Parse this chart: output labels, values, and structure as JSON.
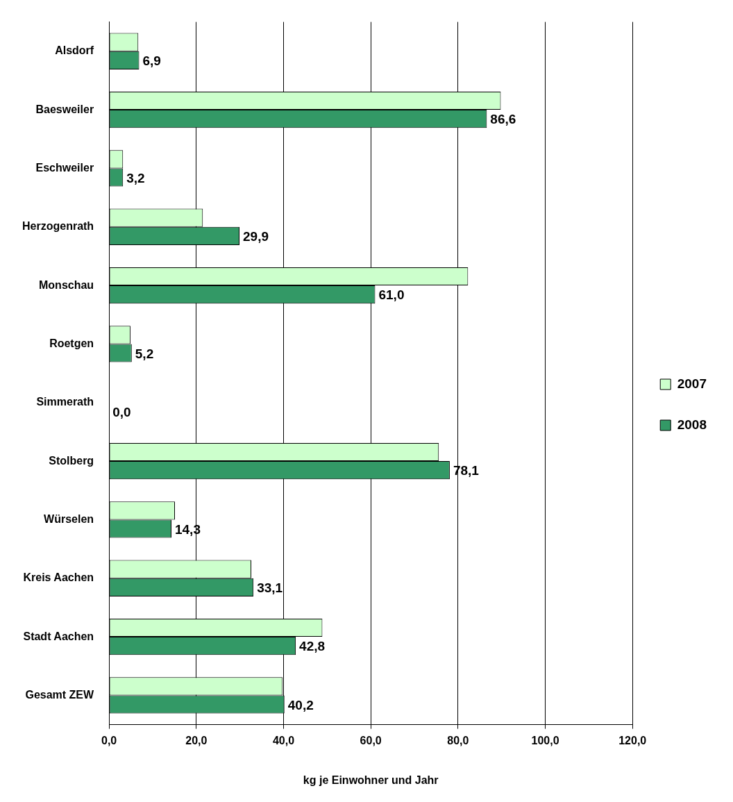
{
  "chart_data": {
    "type": "bar",
    "orientation": "horizontal",
    "xlabel": "kg je Einwohner und Jahr",
    "categories": [
      "Alsdorf",
      "Baesweiler",
      "Eschweiler",
      "Herzogenrath",
      "Monschau",
      "Roetgen",
      "Simmerath",
      "Stolberg",
      "Würselen",
      "Kreis Aachen",
      "Stadt Aachen",
      "Gesamt ZEW"
    ],
    "series": [
      {
        "name": "2007",
        "color": "#ccffcc",
        "values": [
          6.7,
          89.8,
          3.2,
          21.5,
          82.3,
          4.9,
          0,
          75.6,
          15.1,
          32.6,
          48.9,
          39.8
        ]
      },
      {
        "name": "2008",
        "color": "#339966",
        "values": [
          6.9,
          86.6,
          3.2,
          29.9,
          61.0,
          5.2,
          0,
          78.1,
          14.3,
          33.1,
          42.8,
          40.2
        ],
        "value_labels": [
          "6,9",
          "86,6",
          "3,2",
          "29,9",
          "61,0",
          "5,2",
          "0,0",
          "78,1",
          "14,3",
          "33,1",
          "42,8",
          "40,2"
        ]
      }
    ],
    "xlim": [
      0,
      120
    ],
    "xticks": [
      {
        "value": 0,
        "label": "0,0"
      },
      {
        "value": 20,
        "label": "20,0"
      },
      {
        "value": 40,
        "label": "40,0"
      },
      {
        "value": 60,
        "label": "60,0"
      },
      {
        "value": 80,
        "label": "80,0"
      },
      {
        "value": 100,
        "label": "100,0"
      },
      {
        "value": 120,
        "label": "120,0"
      }
    ],
    "grid": "x",
    "legend": "right"
  }
}
